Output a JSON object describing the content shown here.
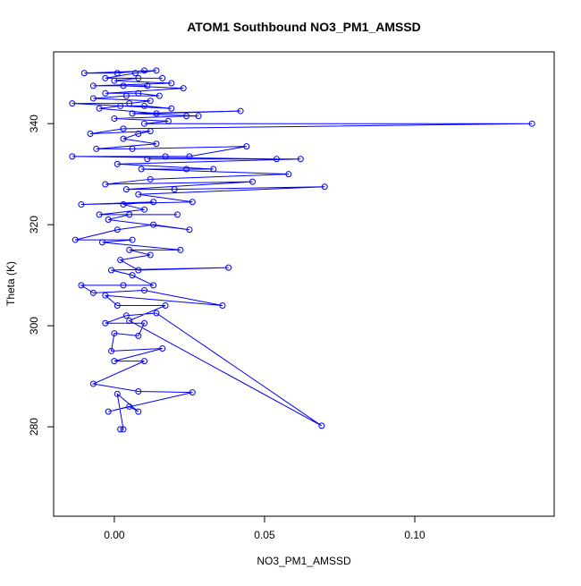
{
  "chart_data": {
    "type": "line",
    "title": "ATOM1 Southbound NO3_PM1_AMSSD",
    "x_label": "NO3_PM1_AMSSD",
    "y_label": "Theta (K)",
    "color": "#0000ff",
    "marker": "open-circle",
    "x": [
      0.002,
      0.003,
      0.001,
      0.008,
      0.005,
      -0.002,
      0.026,
      0.008,
      -0.007,
      0.01,
      0.0,
      0.016,
      -0.001,
      0.0,
      0.008,
      0.01,
      -0.003,
      0.004,
      0.014,
      0.069,
      0.005,
      0.017,
      0.001,
      -0.003,
      0.036,
      0.01,
      -0.007,
      -0.011,
      0.003,
      0.013,
      0.006,
      -0.001,
      0.038,
      0.008,
      0.002,
      0.012,
      0.005,
      0.022,
      -0.004,
      0.006,
      -0.013,
      0.001,
      0.013,
      0.025,
      -0.002,
      0.005,
      0.021,
      -0.005,
      0.01,
      0.003,
      0.013,
      -0.011,
      0.026,
      0.008,
      0.07,
      0.02,
      0.004,
      0.046,
      -0.003,
      0.012,
      0.058,
      0.009,
      0.024,
      0.033,
      0.001,
      0.062,
      0.011,
      0.054,
      -0.014,
      0.017,
      0.025,
      0.044,
      0.006,
      -0.006,
      0.014,
      0.003,
      0.008,
      0.012,
      -0.008,
      0.003,
      0.139,
      0.01,
      0.018,
      0.0,
      0.024,
      0.028,
      0.006,
      0.042,
      0.014,
      -0.005,
      0.002,
      0.01,
      0.019,
      -0.014,
      0.005,
      0.012,
      -0.007,
      0.004,
      0.015,
      0.008,
      -0.003,
      0.023,
      0.003,
      0.011,
      -0.007,
      0.019,
      0.0,
      0.008,
      0.016,
      -0.003,
      0.007,
      0.014,
      -0.01,
      0.001,
      0.01
    ],
    "values": [
      279.5,
      279.5,
      286.5,
      283,
      284,
      283,
      286.8,
      287,
      288.5,
      293,
      293,
      295.5,
      295,
      298.5,
      298,
      300.5,
      300.5,
      302,
      302.5,
      280.2,
      301,
      304,
      304,
      306,
      304,
      307,
      306.5,
      308,
      308,
      308,
      310,
      311,
      311.5,
      311,
      313,
      314,
      315,
      315,
      316.5,
      317,
      317,
      319,
      320,
      319,
      321,
      322,
      322,
      322,
      323,
      324,
      324.5,
      324,
      324.5,
      326,
      327.5,
      327,
      327,
      328.5,
      328,
      329,
      330,
      331,
      331,
      331,
      332,
      333,
      333,
      333,
      333.5,
      333.5,
      333.5,
      335.5,
      335,
      335,
      336,
      337,
      338,
      338.5,
      338,
      339,
      340,
      340,
      340.5,
      341,
      341.5,
      341.5,
      342,
      342.5,
      342,
      343,
      343.5,
      343.5,
      343,
      344,
      344,
      344.5,
      345,
      345.5,
      345.5,
      346,
      346,
      347,
      347.5,
      347.5,
      347.5,
      348,
      348.5,
      349,
      349,
      349,
      350,
      350.5,
      350,
      350,
      350.5
    ],
    "xlim": [
      -0.0202,
      0.1464
    ],
    "ylim": [
      262.3,
      354.2
    ],
    "xticks": [
      {
        "value": 0,
        "label": "0.00"
      },
      0.05,
      {
        "value": 0.1,
        "label": "0.10"
      }
    ],
    "yticks": [
      280,
      300,
      320,
      340
    ]
  }
}
